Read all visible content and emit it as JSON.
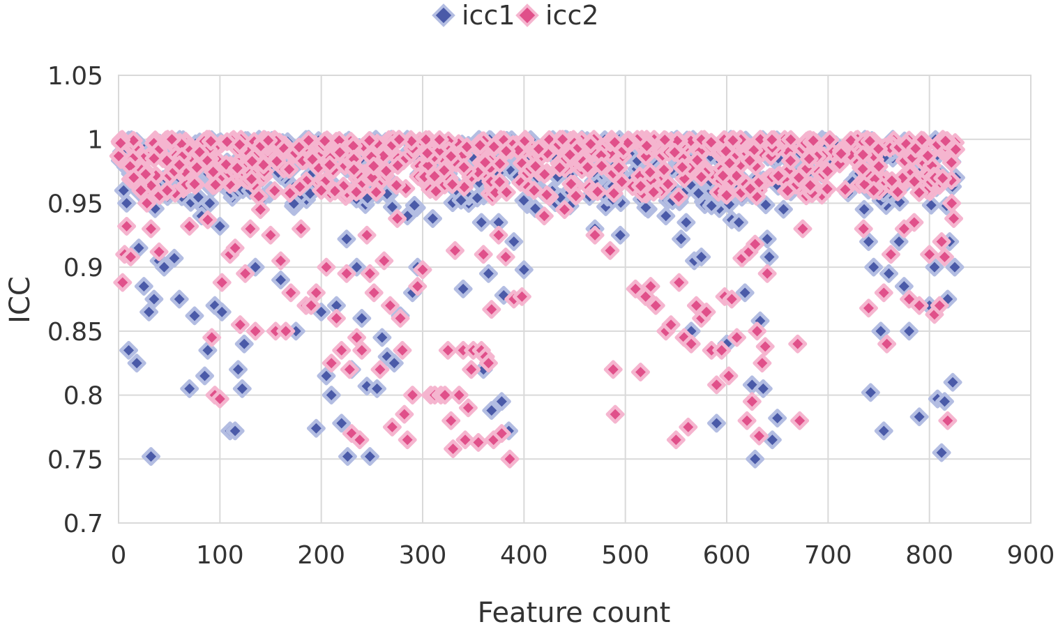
{
  "chart_data": {
    "type": "scatter",
    "title": "",
    "xlabel": "Feature count",
    "ylabel": "ICC",
    "xlim": [
      0,
      900
    ],
    "ylim": [
      0.7,
      1.05
    ],
    "x_ticks": [
      "0",
      "100",
      "200",
      "300",
      "400",
      "500",
      "600",
      "700",
      "800",
      "900"
    ],
    "y_ticks": [
      "0.7",
      "0.75",
      "0.8",
      "0.85",
      "0.9",
      "0.95",
      "1",
      "1.05"
    ],
    "grid": true,
    "legend_position": "top-center",
    "series": [
      {
        "name": "icc1",
        "color": "#4a5aa8",
        "halo": "#b3bde2",
        "marker": "diamond",
        "points": [
          [
            3,
            0.99
          ],
          [
            5,
            0.96
          ],
          [
            8,
            0.95
          ],
          [
            10,
            0.835
          ],
          [
            18,
            0.825
          ],
          [
            20,
            0.915
          ],
          [
            25,
            0.885
          ],
          [
            30,
            0.865
          ],
          [
            32,
            0.752
          ],
          [
            35,
            0.875
          ],
          [
            40,
            0.905
          ],
          [
            45,
            0.9
          ],
          [
            55,
            0.907
          ],
          [
            60,
            0.875
          ],
          [
            70,
            0.805
          ],
          [
            75,
            0.862
          ],
          [
            82,
            0.94
          ],
          [
            85,
            0.815
          ],
          [
            88,
            0.835
          ],
          [
            90,
            0.95
          ],
          [
            95,
            0.87
          ],
          [
            100,
            0.932
          ],
          [
            102,
            0.865
          ],
          [
            110,
            0.772
          ],
          [
            115,
            0.772
          ],
          [
            118,
            0.82
          ],
          [
            122,
            0.805
          ],
          [
            124,
            0.84
          ],
          [
            130,
            0.96
          ],
          [
            135,
            0.9
          ],
          [
            140,
            0.975
          ],
          [
            150,
            0.96
          ],
          [
            160,
            0.89
          ],
          [
            175,
            0.85
          ],
          [
            195,
            0.774
          ],
          [
            200,
            0.865
          ],
          [
            205,
            0.815
          ],
          [
            210,
            0.8
          ],
          [
            215,
            0.87
          ],
          [
            220,
            0.778
          ],
          [
            225,
            0.922
          ],
          [
            226,
            0.752
          ],
          [
            230,
            0.82
          ],
          [
            235,
            0.9
          ],
          [
            240,
            0.86
          ],
          [
            245,
            0.807
          ],
          [
            248,
            0.752
          ],
          [
            255,
            0.805
          ],
          [
            260,
            0.845
          ],
          [
            265,
            0.83
          ],
          [
            272,
            0.825
          ],
          [
            278,
            0.862
          ],
          [
            285,
            0.94
          ],
          [
            290,
            0.88
          ],
          [
            295,
            0.9
          ],
          [
            310,
            0.938
          ],
          [
            340,
            0.883
          ],
          [
            358,
            0.935
          ],
          [
            360,
            0.82
          ],
          [
            365,
            0.895
          ],
          [
            368,
            0.788
          ],
          [
            375,
            0.935
          ],
          [
            378,
            0.795
          ],
          [
            380,
            0.878
          ],
          [
            385,
            0.772
          ],
          [
            390,
            0.92
          ],
          [
            400,
            0.898
          ],
          [
            450,
            0.965
          ],
          [
            470,
            0.93
          ],
          [
            480,
            0.99
          ],
          [
            495,
            0.925
          ],
          [
            540,
            0.94
          ],
          [
            555,
            0.922
          ],
          [
            560,
            0.935
          ],
          [
            565,
            0.85
          ],
          [
            568,
            0.905
          ],
          [
            575,
            0.908
          ],
          [
            585,
            0.948
          ],
          [
            590,
            0.778
          ],
          [
            600,
            0.84
          ],
          [
            605,
            0.937
          ],
          [
            612,
            0.935
          ],
          [
            618,
            0.88
          ],
          [
            625,
            0.808
          ],
          [
            628,
            0.75
          ],
          [
            630,
            0.97
          ],
          [
            633,
            0.858
          ],
          [
            636,
            0.805
          ],
          [
            640,
            0.922
          ],
          [
            642,
            0.908
          ],
          [
            645,
            0.765
          ],
          [
            650,
            0.782
          ],
          [
            740,
            0.92
          ],
          [
            742,
            0.802
          ],
          [
            745,
            0.9
          ],
          [
            752,
            0.85
          ],
          [
            755,
            0.772
          ],
          [
            760,
            0.895
          ],
          [
            770,
            0.92
          ],
          [
            775,
            0.885
          ],
          [
            780,
            0.85
          ],
          [
            785,
            0.97
          ],
          [
            790,
            0.783
          ],
          [
            800,
            0.87
          ],
          [
            805,
            0.9
          ],
          [
            808,
            0.797
          ],
          [
            812,
            0.755
          ],
          [
            815,
            0.795
          ],
          [
            818,
            0.875
          ],
          [
            820,
            0.92
          ],
          [
            823,
            0.81
          ],
          [
            825,
            0.9
          ],
          [
            826,
            0.97
          ]
        ]
      },
      {
        "name": "icc2",
        "color": "#e0508a",
        "halo": "#f5b5cf",
        "marker": "diamond",
        "points": [
          [
            2,
            0.997
          ],
          [
            4,
            0.888
          ],
          [
            6,
            0.91
          ],
          [
            8,
            0.932
          ],
          [
            12,
            0.908
          ],
          [
            15,
            0.97
          ],
          [
            22,
            0.96
          ],
          [
            28,
            0.95
          ],
          [
            32,
            0.93
          ],
          [
            35,
            0.985
          ],
          [
            40,
            0.912
          ],
          [
            48,
            0.96
          ],
          [
            55,
            0.975
          ],
          [
            60,
            0.98
          ],
          [
            70,
            0.932
          ],
          [
            75,
            0.965
          ],
          [
            80,
            0.99
          ],
          [
            88,
            0.937
          ],
          [
            92,
            0.845
          ],
          [
            95,
            0.8
          ],
          [
            100,
            0.797
          ],
          [
            102,
            0.888
          ],
          [
            110,
            0.91
          ],
          [
            115,
            0.915
          ],
          [
            120,
            0.855
          ],
          [
            125,
            0.895
          ],
          [
            130,
            0.93
          ],
          [
            135,
            0.85
          ],
          [
            140,
            0.945
          ],
          [
            150,
            0.925
          ],
          [
            155,
            0.85
          ],
          [
            160,
            0.905
          ],
          [
            165,
            0.85
          ],
          [
            170,
            0.88
          ],
          [
            180,
            0.93
          ],
          [
            185,
            0.87
          ],
          [
            190,
            0.87
          ],
          [
            195,
            0.88
          ],
          [
            200,
            0.96
          ],
          [
            205,
            0.9
          ],
          [
            210,
            0.825
          ],
          [
            215,
            0.86
          ],
          [
            220,
            0.835
          ],
          [
            225,
            0.895
          ],
          [
            228,
            0.82
          ],
          [
            230,
            0.77
          ],
          [
            235,
            0.845
          ],
          [
            238,
            0.765
          ],
          [
            240,
            0.835
          ],
          [
            245,
            0.925
          ],
          [
            248,
            0.895
          ],
          [
            252,
            0.88
          ],
          [
            258,
            0.82
          ],
          [
            262,
            0.905
          ],
          [
            268,
            0.87
          ],
          [
            270,
            0.775
          ],
          [
            275,
            0.938
          ],
          [
            278,
            0.86
          ],
          [
            280,
            0.835
          ],
          [
            282,
            0.785
          ],
          [
            285,
            0.765
          ],
          [
            290,
            0.8
          ],
          [
            295,
            0.885
          ],
          [
            300,
            0.898
          ],
          [
            308,
            0.8
          ],
          [
            312,
            0.8
          ],
          [
            318,
            0.8
          ],
          [
            322,
            0.8
          ],
          [
            325,
            0.835
          ],
          [
            328,
            0.78
          ],
          [
            330,
            0.758
          ],
          [
            332,
            0.913
          ],
          [
            336,
            0.8
          ],
          [
            340,
            0.835
          ],
          [
            342,
            0.765
          ],
          [
            345,
            0.79
          ],
          [
            348,
            0.82
          ],
          [
            350,
            0.835
          ],
          [
            355,
            0.763
          ],
          [
            358,
            0.835
          ],
          [
            360,
            0.91
          ],
          [
            362,
            0.83
          ],
          [
            365,
            0.825
          ],
          [
            368,
            0.867
          ],
          [
            370,
            0.765
          ],
          [
            375,
            0.925
          ],
          [
            378,
            0.77
          ],
          [
            382,
            0.908
          ],
          [
            386,
            0.75
          ],
          [
            390,
            0.875
          ],
          [
            398,
            0.877
          ],
          [
            410,
            0.96
          ],
          [
            420,
            0.94
          ],
          [
            440,
            0.945
          ],
          [
            470,
            0.925
          ],
          [
            485,
            0.913
          ],
          [
            488,
            0.82
          ],
          [
            490,
            0.785
          ],
          [
            510,
            0.883
          ],
          [
            515,
            0.818
          ],
          [
            520,
            0.877
          ],
          [
            525,
            0.885
          ],
          [
            530,
            0.87
          ],
          [
            540,
            0.85
          ],
          [
            545,
            0.855
          ],
          [
            550,
            0.765
          ],
          [
            553,
            0.888
          ],
          [
            558,
            0.845
          ],
          [
            562,
            0.775
          ],
          [
            565,
            0.84
          ],
          [
            570,
            0.87
          ],
          [
            575,
            0.86
          ],
          [
            580,
            0.865
          ],
          [
            585,
            0.835
          ],
          [
            590,
            0.808
          ],
          [
            595,
            0.835
          ],
          [
            598,
            0.877
          ],
          [
            602,
            0.815
          ],
          [
            605,
            0.875
          ],
          [
            610,
            0.845
          ],
          [
            615,
            0.907
          ],
          [
            620,
            0.78
          ],
          [
            622,
            0.912
          ],
          [
            625,
            0.795
          ],
          [
            628,
            0.918
          ],
          [
            630,
            0.85
          ],
          [
            632,
            0.768
          ],
          [
            635,
            0.825
          ],
          [
            638,
            0.838
          ],
          [
            640,
            0.895
          ],
          [
            670,
            0.84
          ],
          [
            672,
            0.78
          ],
          [
            675,
            0.93
          ],
          [
            735,
            0.93
          ],
          [
            740,
            0.868
          ],
          [
            745,
            0.96
          ],
          [
            755,
            0.88
          ],
          [
            758,
            0.84
          ],
          [
            762,
            0.91
          ],
          [
            775,
            0.93
          ],
          [
            780,
            0.875
          ],
          [
            785,
            0.935
          ],
          [
            790,
            0.87
          ],
          [
            800,
            0.91
          ],
          [
            805,
            0.863
          ],
          [
            810,
            0.87
          ],
          [
            812,
            0.92
          ],
          [
            815,
            0.908
          ],
          [
            818,
            0.78
          ],
          [
            822,
            0.95
          ],
          [
            824,
            0.938
          ],
          [
            826,
            0.992
          ]
        ]
      }
    ],
    "dense_bands": [
      {
        "series": "icc1",
        "x_from": 0,
        "x_to": 826,
        "y_from": 0.945,
        "y_to": 1.0
      },
      {
        "series": "icc2",
        "x_from": 0,
        "x_to": 826,
        "y_from": 0.955,
        "y_to": 1.0
      }
    ]
  }
}
